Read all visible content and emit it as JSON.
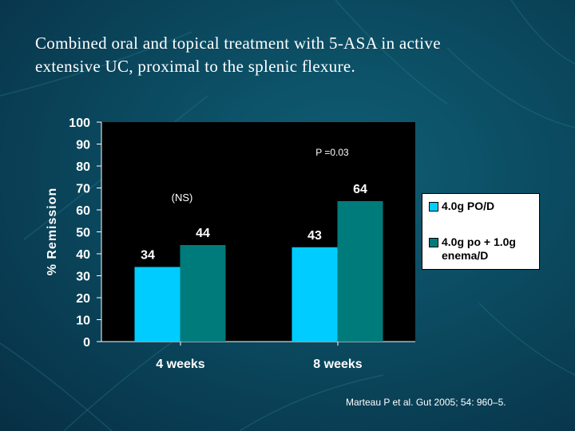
{
  "slide": {
    "title_line1": "Combined oral and topical treatment  with 5-ASA in active",
    "title_line2": "extensive UC, proximal to the splenic flexure.",
    "citation": "Marteau P et al. Gut 2005; 54: 960–5."
  },
  "colors": {
    "series1": "#00ccff",
    "series2": "#007b7b",
    "plot_bg": "#000000",
    "background": "#0b4a60"
  },
  "chart_data": {
    "type": "bar",
    "categories": [
      "4 weeks",
      "8 weeks"
    ],
    "series": [
      {
        "name": "4.0g PO/D",
        "values": [
          34,
          43
        ]
      },
      {
        "name": "4.0g po + 1.0g enema/D",
        "values": [
          44,
          64
        ]
      }
    ],
    "ylabel": "% Remission",
    "xlabel": "",
    "ylim": [
      0,
      100
    ],
    "yticks": [
      0,
      10,
      20,
      30,
      40,
      50,
      60,
      70,
      80,
      90,
      100
    ],
    "data_labels": true,
    "grid": false,
    "legend": "right",
    "annotations": [
      "(NS)",
      "P =0.03"
    ]
  }
}
